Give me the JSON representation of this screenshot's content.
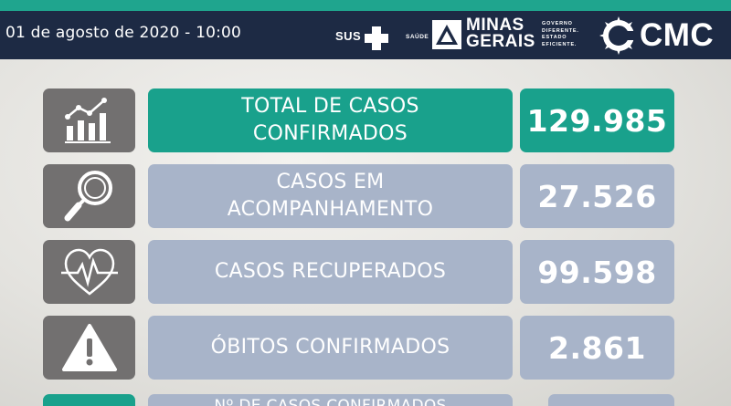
{
  "header": {
    "date": "01 de agosto de 2020 - 10:00",
    "sus_logo": "SUS",
    "saude": "SAÚDE",
    "mg_line1": "MINAS",
    "mg_line2": "GERAIS",
    "gov_line1": "GOVERNO",
    "gov_line2": "DIFERENTE.",
    "gov_line3": "ESTADO",
    "gov_line4": "EFICIENTE.",
    "cmc": "CMC"
  },
  "colors": {
    "teal": "#19a18c",
    "navy": "#1d2a44",
    "slate": "#a8b4c9",
    "icon_gray": "#727070"
  },
  "rows": [
    {
      "icon": "bar-chart-growth-icon",
      "label": "TOTAL DE CASOS\nCONFIRMADOS",
      "value": "129.985"
    },
    {
      "icon": "magnifier-icon",
      "label": "CASOS EM\nACOMPANHAMENTO",
      "value": "27.526"
    },
    {
      "icon": "heart-pulse-icon",
      "label": "CASOS RECUPERADOS",
      "value": "99.598"
    },
    {
      "icon": "warning-icon",
      "label": "ÓBITOS CONFIRMADOS",
      "value": "2.861"
    },
    {
      "icon": "partial-icon",
      "label": "Nº DE CASOS CONFIRMADOS",
      "value": ""
    }
  ]
}
